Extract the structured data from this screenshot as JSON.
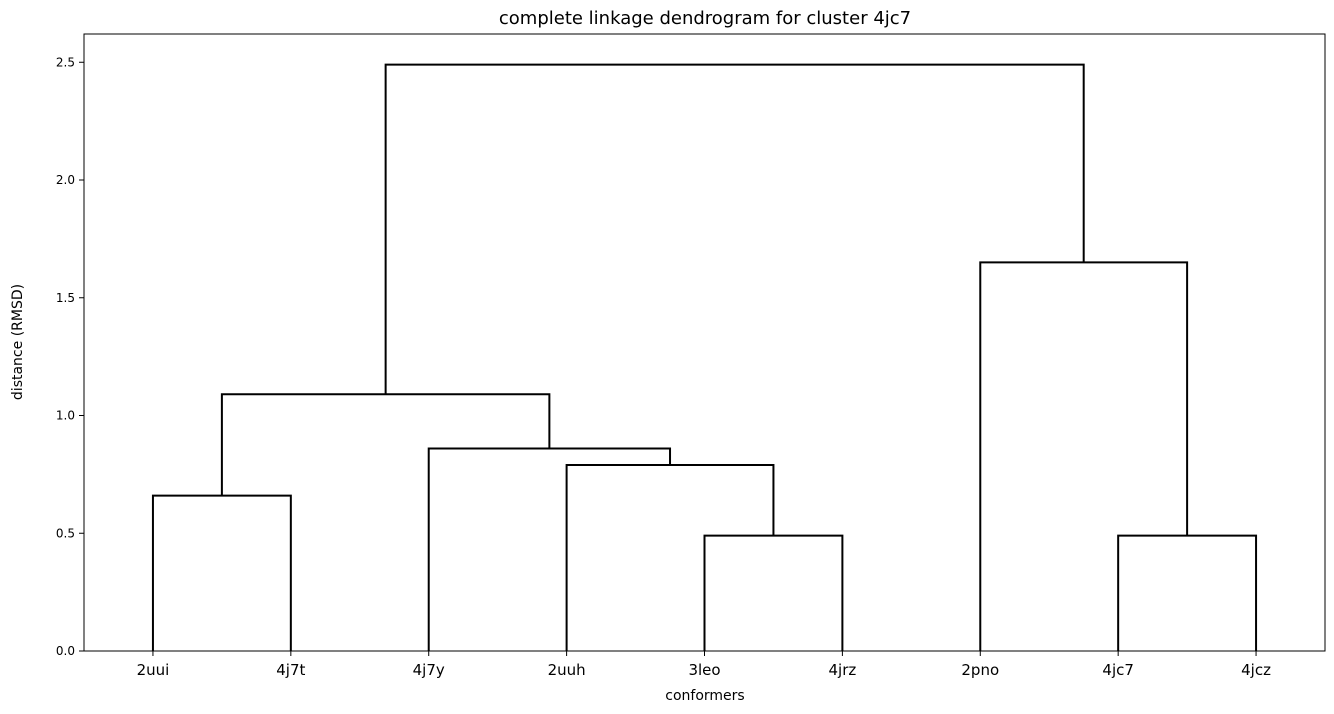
{
  "chart_data": {
    "type": "dendrogram",
    "title": "complete linkage dendrogram for cluster 4jc7",
    "xlabel": "conformers",
    "ylabel": "distance (RMSD)",
    "ylim": [
      0,
      2.62
    ],
    "yticks": [
      "0.0",
      "0.5",
      "1.0",
      "1.5",
      "2.0",
      "2.5"
    ],
    "leaves": [
      "2uui",
      "4j7t",
      "4j7y",
      "2uuh",
      "3leo",
      "4jrz",
      "2pno",
      "4jc7",
      "4jcz"
    ],
    "links": [
      {
        "left": "2uui",
        "right": "4j7t",
        "height": 0.66
      },
      {
        "left": "3leo",
        "right": "4jrz",
        "height": 0.49
      },
      {
        "left": "4jc7",
        "right": "4jcz",
        "height": 0.49
      },
      {
        "left": "2uuh",
        "right": "3leo+4jrz",
        "height": 0.79
      },
      {
        "left": "4j7y",
        "right": "2uuh+3leo+4jrz",
        "height": 0.86
      },
      {
        "left": "2uui+4j7t",
        "right": "4j7y+2uuh+3leo+4jrz",
        "height": 1.09
      },
      {
        "left": "2pno",
        "right": "4jc7+4jcz",
        "height": 1.65
      },
      {
        "left": "2uui+4j7t+4j7y+2uuh+3leo+4jrz",
        "right": "2pno+4jc7+4jcz",
        "height": 2.49
      }
    ],
    "link_color": "#000000",
    "grid": false
  }
}
